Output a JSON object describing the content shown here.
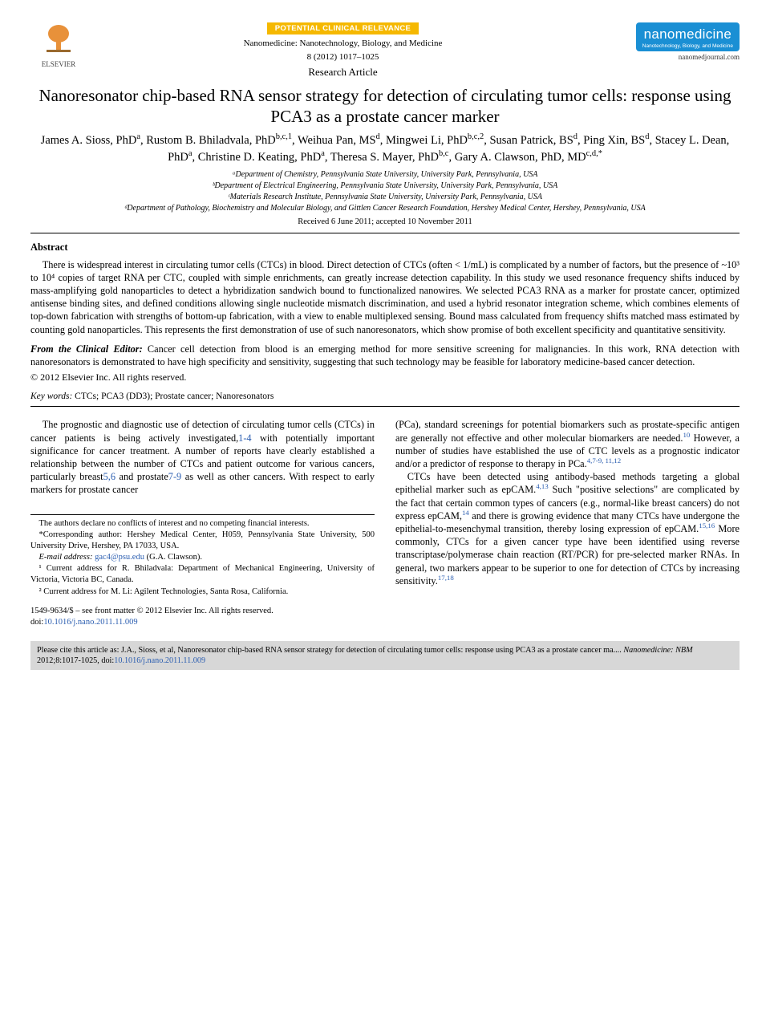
{
  "header": {
    "publisher_name": "ELSEVIER",
    "relevance_label": "POTENTIAL CLINICAL RELEVANCE",
    "journal_full": "Nanomedicine: Nanotechnology, Biology, and Medicine",
    "issue_info": "8 (2012) 1017–1025",
    "article_type": "Research Article",
    "journal_brand": "nanomedicine",
    "journal_subtitle": "Nanotechnology, Biology, and Medicine",
    "journal_url": "nanomedjournal.com"
  },
  "title": "Nanoresonator chip-based RNA sensor strategy for detection of circulating tumor cells: response using PCA3 as a prostate cancer marker",
  "authors_html": "James A. Sioss, PhD<sup>a</sup>, Rustom B. Bhiladvala, PhD<sup>b,c,1</sup>, Weihua Pan, MS<sup>d</sup>, Mingwei Li, PhD<sup>b,c,2</sup>, Susan Patrick, BS<sup>d</sup>, Ping Xin, BS<sup>d</sup>, Stacey L. Dean, PhD<sup>a</sup>, Christine D. Keating, PhD<sup>a</sup>, Theresa S. Mayer, PhD<sup>b,c</sup>, Gary A. Clawson, PhD, MD<sup>c,d,*</sup>",
  "affiliations": [
    "ᵃDepartment of Chemistry, Pennsylvania State University, University Park, Pennsylvania, USA",
    "ᵇDepartment of Electrical Engineering, Pennsylvania State University, University Park, Pennsylvania, USA",
    "ᶜMaterials Research Institute, Pennsylvania State University, University Park, Pennsylvania, USA",
    "ᵈDepartment of Pathology, Biochemistry and Molecular Biology, and Gittlen Cancer Research Foundation, Hershey Medical Center, Hershey, Pennsylvania, USA"
  ],
  "dates": "Received 6 June 2011; accepted 10 November 2011",
  "abstract": {
    "heading": "Abstract",
    "body": "There is widespread interest in circulating tumor cells (CTCs) in blood. Direct detection of CTCs (often < 1/mL) is complicated by a number of factors, but the presence of ~10³ to 10⁴ copies of target RNA per CTC, coupled with simple enrichments, can greatly increase detection capability. In this study we used resonance frequency shifts induced by mass-amplifying gold nanoparticles to detect a hybridization sandwich bound to functionalized nanowires. We selected PCA3 RNA as a marker for prostate cancer, optimized antisense binding sites, and defined conditions allowing single nucleotide mismatch discrimination, and used a hybrid resonator integration scheme, which combines elements of top-down fabrication with strengths of bottom-up fabrication, with a view to enable multiplexed sensing. Bound mass calculated from frequency shifts matched mass estimated by counting gold nanoparticles. This represents the first demonstration of use of such nanoresonators, which show promise of both excellent specificity and quantitative sensitivity.",
    "editor_lead": "From the Clinical Editor:",
    "editor_text": " Cancer cell detection from blood is an emerging method for more sensitive screening for malignancies. In this work, RNA detection with nanoresonators is demonstrated to have high specificity and sensitivity, suggesting that such technology may be feasible for laboratory medicine-based cancer detection.",
    "copyright": "© 2012 Elsevier Inc. All rights reserved."
  },
  "keywords": {
    "label": "Key words:",
    "text": " CTCs; PCA3 (DD3); Prostate cancer; Nanoresonators"
  },
  "body": {
    "left_p1": "The prognostic and diagnostic use of detection of circulating tumor cells (CTCs) in cancer patients is being actively investigated,",
    "left_cite1": "1-4",
    "left_p1b": " with potentially important significance for cancer treatment. A number of reports have clearly established a relationship between the number of CTCs and patient outcome for various cancers, particularly breast",
    "left_cite2": "5,6",
    "left_p1c": " and prostate",
    "left_cite3": "7-9",
    "left_p1d": " as well as other cancers. With respect to early markers for prostate cancer",
    "right_p1": "(PCa), standard screenings for potential biomarkers such as prostate-specific antigen are generally not effective and other molecular biomarkers are needed.",
    "right_cite1": "10",
    "right_p1b": " However, a number of studies have established the use of CTC levels as a prognostic indicator and/or a predictor of response to therapy in PCa.",
    "right_cite2": "4,7-9, 11,12",
    "right_p2a": "CTCs have been detected using antibody-based methods targeting a global epithelial marker such as epCAM.",
    "right_cite3": "4,13",
    "right_p2b": " Such \"positive selections\" are complicated by the fact that certain common types of cancers (e.g., normal-like breast cancers) do not express epCAM,",
    "right_cite4": "14",
    "right_p2c": " and there is growing evidence that many CTCs have undergone the epithelial-to-mesenchymal transition, thereby losing expression of epCAM.",
    "right_cite5": "15,16",
    "right_p2d": " More commonly, CTCs for a given cancer type have been identified using reverse transcriptase/polymerase chain reaction (RT/PCR) for pre-selected marker RNAs. In general, two markers appear to be superior to one for detection of CTCs by increasing sensitivity.",
    "right_cite6": "17,18"
  },
  "footnotes": {
    "conflict": "The authors declare no conflicts of interest and no competing financial interests.",
    "corresponding": "*Corresponding author: Hershey Medical Center, H059, Pennsylvania State University, 500 University Drive, Hershey, PA 17033, USA.",
    "email_label": "E-mail address:",
    "email": "gac4@psu.edu",
    "email_tail": " (G.A. Clawson).",
    "note1": "¹ Current address for R. Bhiladvala: Department of Mechanical Engineering, University of Victoria, Victoria BC, Canada.",
    "note2": "² Current address for M. Li: Agilent Technologies, Santa Rosa, California."
  },
  "front_matter": {
    "line1": "1549-9634/$ – see front matter © 2012 Elsevier Inc. All rights reserved.",
    "doi_label": "doi:",
    "doi": "10.1016/j.nano.2011.11.009"
  },
  "citation_box": {
    "lead": "Please cite this article as: J.A., Sioss, et al, Nanoresonator chip-based RNA sensor strategy for detection of circulating tumor cells: response using PCA3 as a prostate cancer ma.... ",
    "journal_ital": "Nanomedicine: NBM",
    "tail": " 2012;8:1017-1025, doi:",
    "doi": "10.1016/j.nano.2011.11.009"
  }
}
